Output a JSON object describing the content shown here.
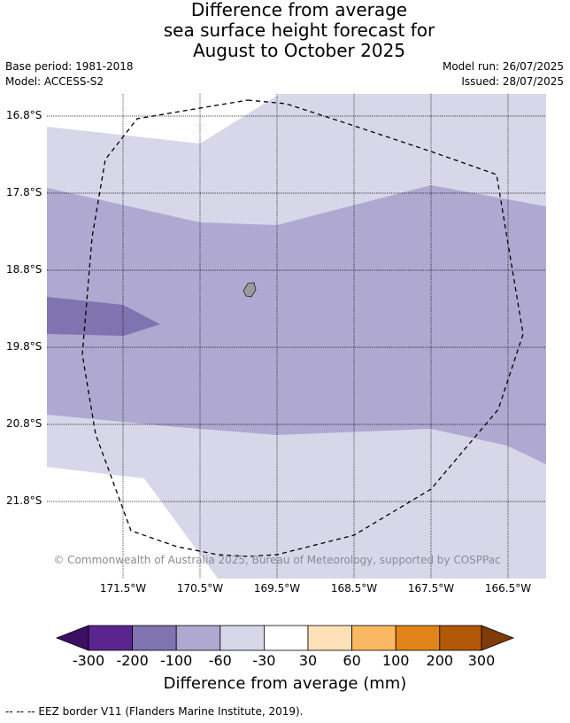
{
  "title": {
    "line1": "Difference from average",
    "line2": "sea surface height forecast for",
    "line3": "August to October 2025"
  },
  "meta": {
    "base_period": "Base period: 1981-2018",
    "model": "Model: ACCESS-S2",
    "model_run": "Model run: 26/07/2025",
    "issued": "Issued: 28/07/2025"
  },
  "map": {
    "lat_labels": [
      "16.8°S",
      "17.8°S",
      "18.8°S",
      "19.8°S",
      "20.8°S",
      "21.8°S"
    ],
    "lon_labels": [
      "171.5°W",
      "170.5°W",
      "169.5°W",
      "168.5°W",
      "167.5°W",
      "166.5°W"
    ],
    "copyright": "© Commonwealth of Australia 2025, Bureau of Meteorology, supported by COSPPac",
    "colors": {
      "band_-60_-30": "#d7d7e9",
      "band_-100_-60": "#afa9d1",
      "band_-200_-100": "#8074b0",
      "land": "#9a9a9a",
      "grid": "#000000"
    }
  },
  "colorbar": {
    "title": "Difference from average (mm)",
    "ticks": [
      "-300",
      "-200",
      "-100",
      "-60",
      "-30",
      "30",
      "60",
      "100",
      "200",
      "300"
    ],
    "colors": [
      "#3d0e63",
      "#5b2590",
      "#8074b0",
      "#afa9d1",
      "#d7d7e9",
      "#ffffff",
      "#fde0b8",
      "#fbb862",
      "#e0841a",
      "#b35806",
      "#7f3b08"
    ]
  },
  "footnote": "-- -- -- EEZ border V11 (Flanders Marine Institute, 2019)."
}
